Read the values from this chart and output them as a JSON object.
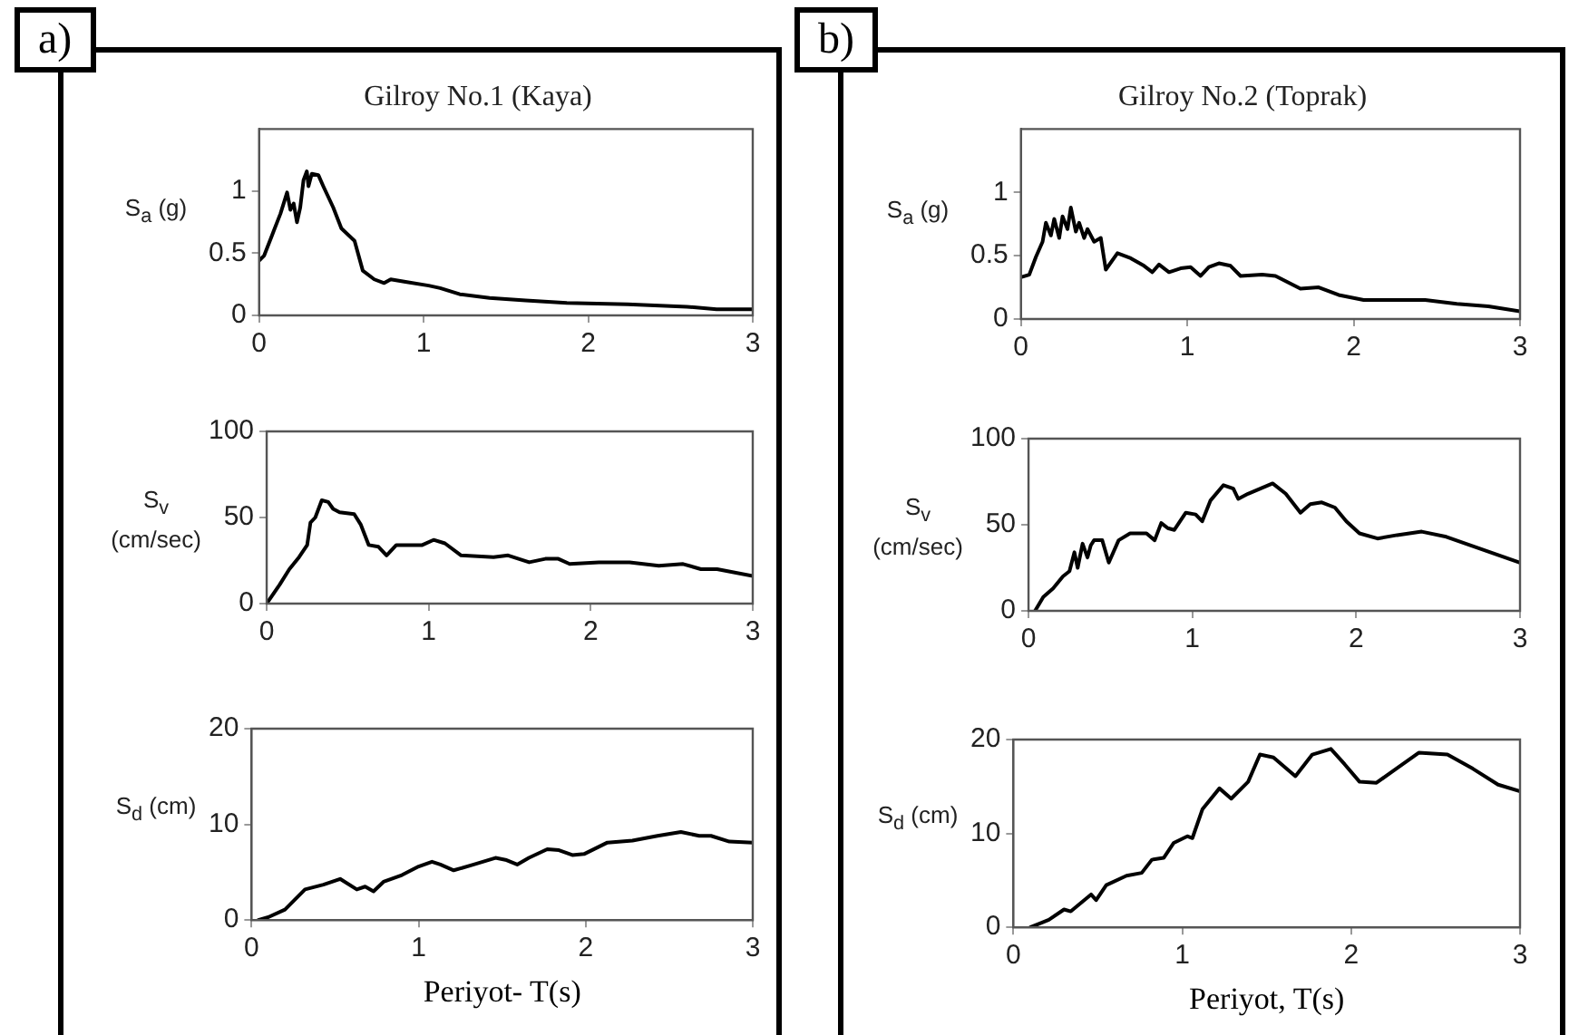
{
  "chart_data": [
    {
      "type": "line",
      "title": "Gilroy No.1 (Kaya)",
      "ylabel": "S$_{a}$ (g)",
      "annotations": [
        "a)"
      ],
      "xlim": [
        0,
        3
      ],
      "xticks": [
        0,
        1,
        2,
        3
      ],
      "ylim": [
        0,
        1.5
      ],
      "yticks": [
        0,
        0.5,
        1
      ],
      "series": [
        {
          "color": "#000000",
          "x": [
            0,
            0.03,
            0.08,
            0.13,
            0.17,
            0.19,
            0.21,
            0.23,
            0.25,
            0.27,
            0.29,
            0.3,
            0.32,
            0.36,
            0.39,
            0.45,
            0.5,
            0.58,
            0.63,
            0.7,
            0.76,
            0.8,
            0.89,
            1.03,
            1.1,
            1.22,
            1.4,
            1.62,
            1.87,
            2.24,
            2.6,
            2.78,
            3
          ],
          "values": [
            0.44,
            0.48,
            0.65,
            0.82,
            0.99,
            0.85,
            0.9,
            0.75,
            0.87,
            1.09,
            1.16,
            1.04,
            1.14,
            1.13,
            1.04,
            0.87,
            0.7,
            0.6,
            0.36,
            0.29,
            0.26,
            0.29,
            0.27,
            0.24,
            0.22,
            0.17,
            0.14,
            0.12,
            0.1,
            0.09,
            0.07,
            0.05,
            0.05
          ]
        }
      ]
    },
    {
      "type": "line",
      "ylabel": "S$_{v}$ (cm/sec)",
      "xlim": [
        0,
        3
      ],
      "xticks": [
        0,
        1,
        2,
        3
      ],
      "ylim": [
        0,
        100
      ],
      "yticks": [
        0,
        50,
        100
      ],
      "series": [
        {
          "color": "#000000",
          "x": [
            0,
            0.08,
            0.14,
            0.2,
            0.25,
            0.27,
            0.3,
            0.34,
            0.38,
            0.41,
            0.45,
            0.54,
            0.58,
            0.63,
            0.69,
            0.74,
            0.8,
            0.96,
            1.03,
            1.1,
            1.2,
            1.4,
            1.49,
            1.62,
            1.72,
            1.8,
            1.87,
            2.05,
            2.24,
            2.42,
            2.57,
            2.68,
            2.78,
            3
          ],
          "values": [
            0,
            11,
            20,
            27,
            34,
            47,
            50,
            60,
            59,
            55,
            53,
            52,
            46,
            34,
            33,
            28,
            34,
            34,
            37,
            35,
            28,
            27,
            28,
            24,
            26,
            26,
            23,
            24,
            24,
            22,
            23,
            20,
            20,
            16
          ]
        }
      ]
    },
    {
      "type": "line",
      "ylabel": "S$_{d}$ (cm)",
      "xlabel": "Periyot- T(s)",
      "xlim": [
        0,
        3
      ],
      "xticks": [
        0,
        1,
        2,
        3
      ],
      "ylim": [
        0,
        20
      ],
      "yticks": [
        0,
        10,
        20
      ],
      "series": [
        {
          "color": "#000000",
          "x": [
            0.04,
            0.1,
            0.2,
            0.32,
            0.43,
            0.53,
            0.63,
            0.68,
            0.73,
            0.79,
            0.9,
            1.0,
            1.08,
            1.13,
            1.21,
            1.33,
            1.46,
            1.52,
            1.59,
            1.66,
            1.77,
            1.84,
            1.92,
            1.99,
            2.13,
            2.28,
            2.43,
            2.57,
            2.68,
            2.75,
            2.86,
            3
          ],
          "values": [
            0,
            0.3,
            1.1,
            3.2,
            3.7,
            4.3,
            3.2,
            3.5,
            3.0,
            4.0,
            4.7,
            5.6,
            6.1,
            5.8,
            5.2,
            5.8,
            6.5,
            6.3,
            5.8,
            6.5,
            7.4,
            7.3,
            6.8,
            6.9,
            8.1,
            8.3,
            8.8,
            9.2,
            8.8,
            8.8,
            8.2,
            8.1
          ]
        }
      ]
    },
    {
      "type": "line",
      "title": "Gilroy No.2 (Toprak)",
      "ylabel": "S$_{a}$ (g)",
      "annotations": [
        "b)"
      ],
      "xlim": [
        0,
        3
      ],
      "xticks": [
        0,
        1,
        2,
        3
      ],
      "ylim": [
        0,
        1.5
      ],
      "yticks": [
        0,
        0.5,
        1
      ],
      "series": [
        {
          "color": "#000000",
          "x": [
            0,
            0.05,
            0.09,
            0.13,
            0.15,
            0.18,
            0.2,
            0.23,
            0.25,
            0.28,
            0.3,
            0.33,
            0.35,
            0.38,
            0.4,
            0.44,
            0.48,
            0.51,
            0.58,
            0.66,
            0.74,
            0.79,
            0.83,
            0.89,
            0.96,
            1.02,
            1.08,
            1.13,
            1.19,
            1.26,
            1.32,
            1.45,
            1.53,
            1.68,
            1.79,
            1.91,
            2.06,
            2.25,
            2.43,
            2.62,
            2.81,
            3
          ],
          "values": [
            0.33,
            0.35,
            0.49,
            0.61,
            0.76,
            0.66,
            0.79,
            0.64,
            0.81,
            0.71,
            0.88,
            0.69,
            0.76,
            0.64,
            0.71,
            0.61,
            0.64,
            0.39,
            0.52,
            0.48,
            0.42,
            0.37,
            0.43,
            0.37,
            0.4,
            0.41,
            0.34,
            0.41,
            0.44,
            0.42,
            0.34,
            0.35,
            0.34,
            0.24,
            0.25,
            0.19,
            0.15,
            0.15,
            0.15,
            0.12,
            0.1,
            0.06
          ]
        }
      ]
    },
    {
      "type": "line",
      "ylabel": "S$_{v}$ (cm/sec)",
      "xlim": [
        0,
        3
      ],
      "xticks": [
        0,
        1,
        2,
        3
      ],
      "ylim": [
        0,
        100
      ],
      "yticks": [
        0,
        50,
        100
      ],
      "series": [
        {
          "color": "#000000",
          "x": [
            0.04,
            0.09,
            0.15,
            0.21,
            0.25,
            0.28,
            0.3,
            0.33,
            0.36,
            0.38,
            0.4,
            0.45,
            0.49,
            0.55,
            0.62,
            0.72,
            0.77,
            0.81,
            0.85,
            0.89,
            0.96,
            1.02,
            1.06,
            1.11,
            1.19,
            1.25,
            1.28,
            1.34,
            1.49,
            1.57,
            1.66,
            1.72,
            1.79,
            1.87,
            1.94,
            2.02,
            2.13,
            2.25,
            2.4,
            2.55,
            2.7,
            2.85,
            3
          ],
          "values": [
            0,
            8,
            13,
            20,
            23,
            34,
            25,
            39,
            31,
            38,
            41,
            41,
            28,
            41,
            45,
            45,
            41,
            51,
            48,
            47,
            57,
            56,
            52,
            64,
            73,
            71,
            65,
            68,
            74,
            68,
            57,
            62,
            63,
            60,
            52,
            45,
            42,
            44,
            46,
            43,
            38,
            33,
            28
          ]
        }
      ]
    },
    {
      "type": "line",
      "ylabel": "S$_{d}$ (cm)",
      "xlabel": "Periyot, T(s)",
      "xlim": [
        0,
        3
      ],
      "xticks": [
        0,
        1,
        2,
        3
      ],
      "ylim": [
        0,
        20
      ],
      "yticks": [
        0,
        10,
        20
      ],
      "series": [
        {
          "color": "#000000",
          "x": [
            0.1,
            0.21,
            0.3,
            0.34,
            0.4,
            0.46,
            0.49,
            0.55,
            0.67,
            0.76,
            0.82,
            0.89,
            0.95,
            1.03,
            1.06,
            1.12,
            1.22,
            1.29,
            1.39,
            1.46,
            1.54,
            1.67,
            1.77,
            1.88,
            1.96,
            2.05,
            2.15,
            2.26,
            2.4,
            2.57,
            2.72,
            2.87,
            3
          ],
          "values": [
            0,
            0.8,
            1.9,
            1.7,
            2.6,
            3.5,
            2.9,
            4.5,
            5.5,
            5.8,
            7.2,
            7.4,
            9.0,
            9.7,
            9.5,
            12.6,
            14.8,
            13.7,
            15.5,
            18.4,
            18.1,
            16.1,
            18.4,
            19.0,
            17.4,
            15.5,
            15.4,
            16.8,
            18.6,
            18.4,
            16.9,
            15.2,
            14.5
          ]
        }
      ]
    }
  ]
}
